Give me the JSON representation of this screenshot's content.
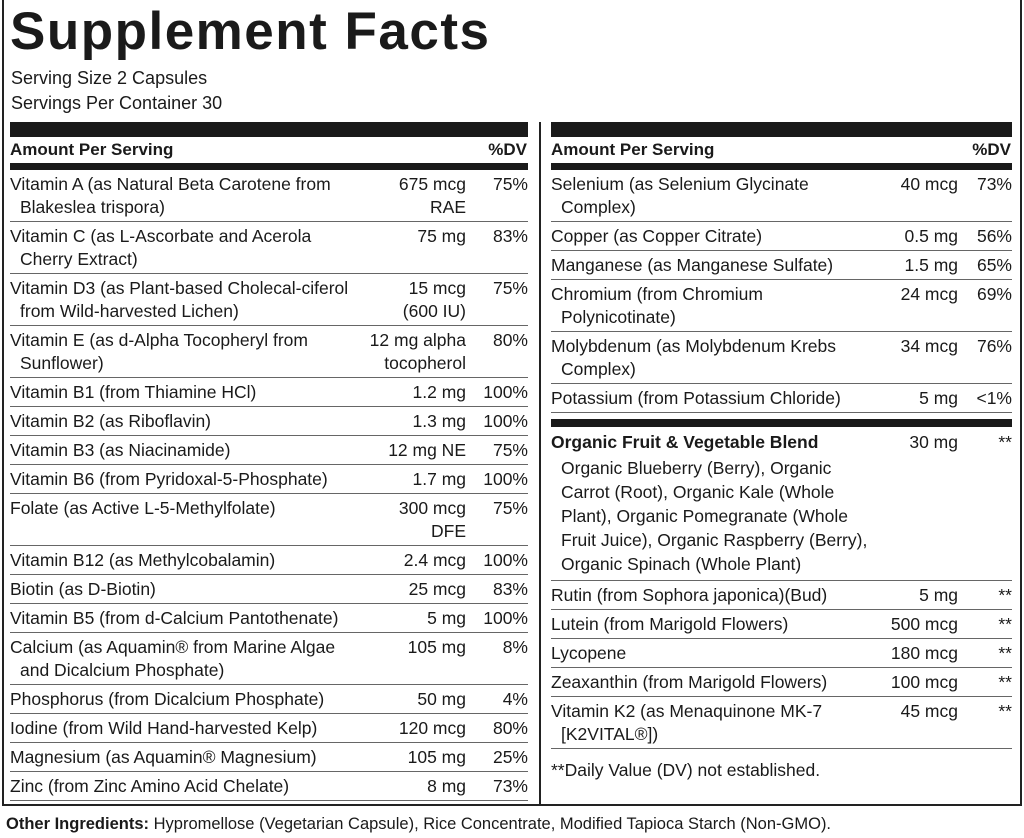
{
  "header": {
    "title": "Supplement Facts",
    "serving_size": "Serving Size 2 Capsules",
    "servings_per_container": "Servings Per Container 30"
  },
  "left_table": {
    "header": {
      "amount": "Amount Per Serving",
      "dv": "%DV"
    },
    "rows": [
      {
        "name": "Vitamin A (as Natural Beta Carotene from Blakeslea trispora)",
        "amount": [
          "675 mcg",
          "RAE"
        ],
        "dv": "75%"
      },
      {
        "name": "Vitamin C (as L-Ascorbate and Acerola Cherry Extract)",
        "amount": [
          "75 mg"
        ],
        "dv": "83%"
      },
      {
        "name": "Vitamin D3 (as Plant-based Cholecal-ciferol from Wild-harvested Lichen)",
        "amount": [
          "15 mcg",
          "(600 IU)"
        ],
        "dv": "75%"
      },
      {
        "name": "Vitamin E (as d-Alpha Tocopheryl from Sunflower)",
        "amount": [
          "12 mg alpha",
          "tocopherol"
        ],
        "dv": "80%"
      },
      {
        "name": "Vitamin B1 (from Thiamine HCl)",
        "amount": [
          "1.2 mg"
        ],
        "dv": "100%"
      },
      {
        "name": "Vitamin B2 (as Riboflavin)",
        "amount": [
          "1.3 mg"
        ],
        "dv": "100%"
      },
      {
        "name": "Vitamin B3 (as Niacinamide)",
        "amount": [
          "12 mg NE"
        ],
        "dv": "75%"
      },
      {
        "name": "Vitamin B6 (from Pyridoxal-5-Phosphate)",
        "amount": [
          "1.7 mg"
        ],
        "dv": "100%"
      },
      {
        "name": "Folate (as Active L-5-Methylfolate)",
        "amount": [
          "300 mcg",
          "DFE"
        ],
        "dv": "75%"
      },
      {
        "name": "Vitamin B12 (as Methylcobalamin)",
        "amount": [
          "2.4 mcg"
        ],
        "dv": "100%"
      },
      {
        "name": "Biotin (as D-Biotin)",
        "amount": [
          "25 mcg"
        ],
        "dv": "83%"
      },
      {
        "name": "Vitamin B5 (from d-Calcium Pantothenate)",
        "amount": [
          "5 mg"
        ],
        "dv": "100%"
      },
      {
        "name": "Calcium (as Aquamin® from Marine Algae and Dicalcium Phosphate)",
        "amount": [
          "105 mg"
        ],
        "dv": "8%"
      },
      {
        "name": "Phosphorus (from Dicalcium Phosphate)",
        "amount": [
          "50 mg"
        ],
        "dv": "4%"
      },
      {
        "name": "Iodine (from Wild Hand-harvested Kelp)",
        "amount": [
          "120 mcg"
        ],
        "dv": "80%"
      },
      {
        "name": "Magnesium (as Aquamin® Magnesium)",
        "amount": [
          "105 mg"
        ],
        "dv": "25%"
      },
      {
        "name": "Zinc (from Zinc Amino Acid Chelate)",
        "amount": [
          "8 mg"
        ],
        "dv": "73%"
      }
    ]
  },
  "right_table": {
    "header": {
      "amount": "Amount Per Serving",
      "dv": "%DV"
    },
    "rows": [
      {
        "name": "Selenium (as Selenium Glycinate Complex)",
        "amount": [
          "40 mcg"
        ],
        "dv": "73%"
      },
      {
        "name": "Copper (as Copper Citrate)",
        "amount": [
          "0.5 mg"
        ],
        "dv": "56%"
      },
      {
        "name": "Manganese (as Manganese Sulfate)",
        "amount": [
          "1.5 mg"
        ],
        "dv": "65%"
      },
      {
        "name": "Chromium (from Chromium Polynicotinate)",
        "amount": [
          "24 mcg"
        ],
        "dv": "69%"
      },
      {
        "name": "Molybdenum (as Molybdenum Krebs Complex)",
        "amount": [
          "34 mcg"
        ],
        "dv": "76%"
      },
      {
        "name": "Potassium (from Potassium Chloride)",
        "amount": [
          "5 mg"
        ],
        "dv": "<1%"
      }
    ],
    "blend": {
      "name": "Organic Fruit & Vegetable Blend",
      "amount": "30 mg",
      "dv": "**",
      "ingredients": "Organic Blueberry (Berry), Organic Carrot (Root), Organic Kale (Whole Plant), Organic Pomegranate (Whole Fruit Juice), Organic Raspberry (Berry), Organic Spinach (Whole Plant)"
    },
    "blend_rows": [
      {
        "name": "Rutin (from Sophora japonica)(Bud)",
        "amount": [
          "5 mg"
        ],
        "dv": "**"
      },
      {
        "name": "Lutein (from Marigold Flowers)",
        "amount": [
          "500 mcg"
        ],
        "dv": "**"
      },
      {
        "name": "Lycopene",
        "amount": [
          "180 mcg"
        ],
        "dv": "**"
      },
      {
        "name": "Zeaxanthin (from Marigold Flowers)",
        "amount": [
          "100 mcg"
        ],
        "dv": "**"
      },
      {
        "name": "Vitamin K2 (as Menaquinone MK-7 [K2VITAL®])",
        "amount": [
          "45 mcg"
        ],
        "dv": "**"
      }
    ],
    "footnote": "**Daily Value (DV) not established."
  },
  "other_ingredients": {
    "label": "Other Ingredients:",
    "text": "Hypromellose (Vegetarian Capsule), Rice Concentrate, Modified Tapioca Starch (Non-GMO)."
  }
}
